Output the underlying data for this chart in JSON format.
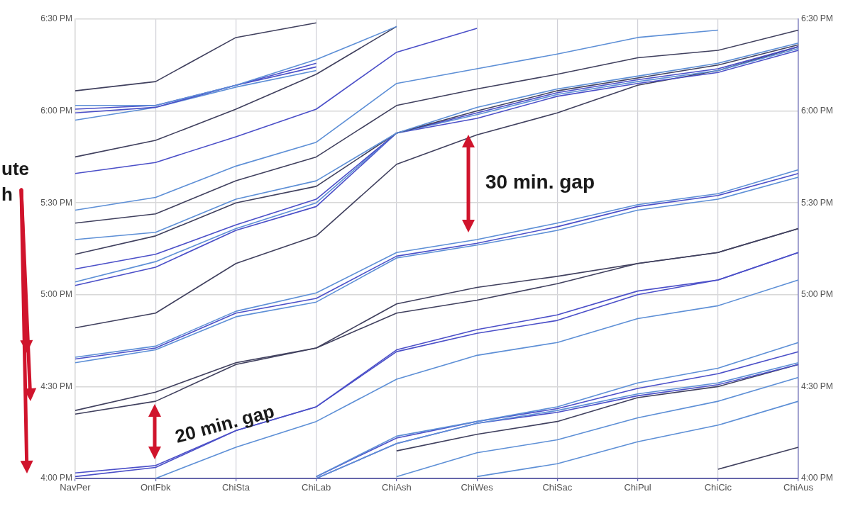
{
  "chart_data": {
    "type": "line",
    "categories": [
      "NavPer",
      "OntFbk",
      "ChiSta",
      "ChiLab",
      "ChiAsh",
      "ChiWes",
      "ChiSac",
      "ChiPul",
      "ChiCic",
      "ChiAus"
    ],
    "ylim": [
      16,
      18.5
    ],
    "yticks": [
      {
        "value": 16,
        "label": "4:00 PM"
      },
      {
        "value": 16.5,
        "label": "4:30 PM"
      },
      {
        "value": 17,
        "label": "5:00 PM"
      },
      {
        "value": 17.5,
        "label": "5:30 PM"
      },
      {
        "value": 18,
        "label": "6:00 PM"
      },
      {
        "value": 18.5,
        "label": "6:30 PM"
      }
    ],
    "y2lim": [
      16,
      18.5
    ],
    "y2ticks": [
      {
        "value": 16,
        "label": "4:00 PM"
      },
      {
        "value": 16.5,
        "label": "4:30 PM"
      },
      {
        "value": 17,
        "label": "5:00 PM"
      },
      {
        "value": 17.5,
        "label": "5:30 PM"
      },
      {
        "value": 18,
        "label": "6:00 PM"
      },
      {
        "value": 18.5,
        "label": "6:30 PM"
      }
    ],
    "grid": true,
    "legend": false,
    "marker": "none",
    "line_style": "solid",
    "annotations": [
      "ute",
      "h",
      "30 min. gap",
      "20 min. gap"
    ],
    "series": [
      {
        "color": "#40405e",
        "values": [
          18.11,
          18.16,
          18.4,
          18.48,
          null,
          null,
          null,
          null,
          null,
          null
        ]
      },
      {
        "color": "#5d8fd6",
        "values": [
          18.03,
          18.03,
          18.14,
          18.28,
          18.46,
          null,
          null,
          null,
          null,
          null
        ]
      },
      {
        "color": "#4b4fc8",
        "values": [
          18.01,
          18.03,
          18.14,
          18.26,
          null,
          null,
          null,
          null,
          null,
          null
        ]
      },
      {
        "color": "#4b4fc8",
        "values": [
          17.99,
          18.02,
          18.14,
          18.24,
          null,
          null,
          null,
          null,
          null,
          null
        ]
      },
      {
        "color": "#5d8fd6",
        "values": [
          17.95,
          18.02,
          18.13,
          18.22,
          null,
          null,
          null,
          null,
          null,
          null
        ]
      },
      {
        "color": "#40405e",
        "values": [
          17.75,
          17.84,
          18.01,
          18.2,
          18.46,
          null,
          null,
          null,
          null,
          null
        ]
      },
      {
        "color": "#4b4fc8",
        "values": [
          17.66,
          17.72,
          17.86,
          18.01,
          18.32,
          18.45,
          null,
          null,
          null,
          null
        ]
      },
      {
        "color": "#5d8fd6",
        "values": [
          17.46,
          17.53,
          17.7,
          17.83,
          18.15,
          18.23,
          18.31,
          18.4,
          18.44,
          null
        ]
      },
      {
        "color": "#40405e",
        "values": [
          17.39,
          17.44,
          17.62,
          17.75,
          18.03,
          18.12,
          18.2,
          18.29,
          18.33,
          18.44
        ]
      },
      {
        "color": "#5d8fd6",
        "values": [
          17.3,
          17.34,
          17.52,
          17.62,
          17.88,
          18.02,
          18.12,
          18.19,
          18.26,
          18.37
        ]
      },
      {
        "color": "#40405e",
        "values": [
          17.22,
          17.32,
          17.5,
          17.59,
          17.88,
          18.0,
          18.11,
          18.18,
          18.25,
          18.36
        ]
      },
      {
        "color": "#4b4fc8",
        "values": [
          17.14,
          17.22,
          17.38,
          17.52,
          17.88,
          17.99,
          18.1,
          18.17,
          18.23,
          18.35
        ]
      },
      {
        "color": "#5d8fd6",
        "values": [
          17.07,
          17.18,
          17.36,
          17.5,
          17.88,
          17.98,
          18.09,
          18.16,
          18.22,
          18.34
        ]
      },
      {
        "color": "#4b4fc8",
        "values": [
          17.05,
          17.15,
          17.35,
          17.48,
          17.88,
          17.96,
          18.08,
          18.15,
          18.21,
          18.33
        ]
      },
      {
        "color": "#40405e",
        "values": [
          16.82,
          16.9,
          17.17,
          17.32,
          17.71,
          17.87,
          17.99,
          18.14,
          18.22,
          18.35
        ]
      },
      {
        "color": "#5d8fd6",
        "values": [
          16.66,
          16.72,
          16.91,
          17.01,
          17.23,
          17.3,
          17.39,
          17.49,
          17.55,
          17.68
        ]
      },
      {
        "color": "#4b4fc8",
        "values": [
          16.65,
          16.71,
          16.9,
          16.98,
          17.21,
          17.28,
          17.37,
          17.48,
          17.54,
          17.66
        ]
      },
      {
        "color": "#5d8fd6",
        "values": [
          16.63,
          16.7,
          16.88,
          16.96,
          17.2,
          17.27,
          17.35,
          17.46,
          17.52,
          17.64
        ]
      },
      {
        "color": "#40405e",
        "values": [
          16.37,
          16.47,
          16.63,
          16.71,
          16.95,
          17.04,
          17.1,
          17.17,
          17.23,
          17.36
        ]
      },
      {
        "color": "#40405e",
        "values": [
          16.35,
          16.42,
          16.62,
          16.71,
          16.9,
          16.97,
          17.06,
          17.17,
          17.23,
          17.36
        ]
      },
      {
        "color": "#4b4fc8",
        "values": [
          16.03,
          16.07,
          16.26,
          16.39,
          16.7,
          16.81,
          16.89,
          17.02,
          17.08,
          17.23
        ]
      },
      {
        "color": "#4b4fc8",
        "values": [
          16.01,
          16.06,
          16.26,
          16.39,
          16.69,
          16.79,
          16.86,
          17.0,
          17.08,
          17.23
        ]
      },
      {
        "color": "#5d8fd6",
        "values": [
          null,
          16.0,
          16.17,
          16.31,
          16.54,
          16.67,
          16.74,
          16.87,
          16.94,
          17.08
        ]
      },
      {
        "color": "#5d8fd6",
        "values": [
          null,
          null,
          null,
          16.01,
          16.23,
          16.31,
          16.39,
          16.52,
          16.6,
          16.74
        ]
      },
      {
        "color": "#4b4fc8",
        "values": [
          null,
          null,
          null,
          16.01,
          16.22,
          16.31,
          16.38,
          16.49,
          16.57,
          16.69
        ]
      },
      {
        "color": "#5d8fd6",
        "values": [
          null,
          null,
          null,
          16.0,
          16.19,
          16.3,
          16.37,
          16.46,
          16.52,
          16.63
        ]
      },
      {
        "color": "#4b4fc8",
        "values": [
          null,
          null,
          null,
          16.0,
          16.19,
          16.3,
          16.36,
          16.45,
          16.51,
          16.62
        ]
      },
      {
        "color": "#40405e",
        "values": [
          null,
          null,
          null,
          null,
          16.15,
          16.24,
          16.31,
          16.44,
          16.5,
          16.62
        ]
      },
      {
        "color": "#5d8fd6",
        "values": [
          null,
          null,
          null,
          null,
          16.01,
          16.14,
          16.21,
          16.33,
          16.42,
          16.55
        ]
      },
      {
        "color": "#5d8fd6",
        "values": [
          null,
          null,
          null,
          null,
          null,
          16.01,
          16.08,
          16.2,
          16.29,
          16.42
        ]
      },
      {
        "color": "#40405e",
        "values": [
          null,
          null,
          null,
          null,
          null,
          null,
          null,
          null,
          16.05,
          16.17
        ]
      }
    ]
  }
}
